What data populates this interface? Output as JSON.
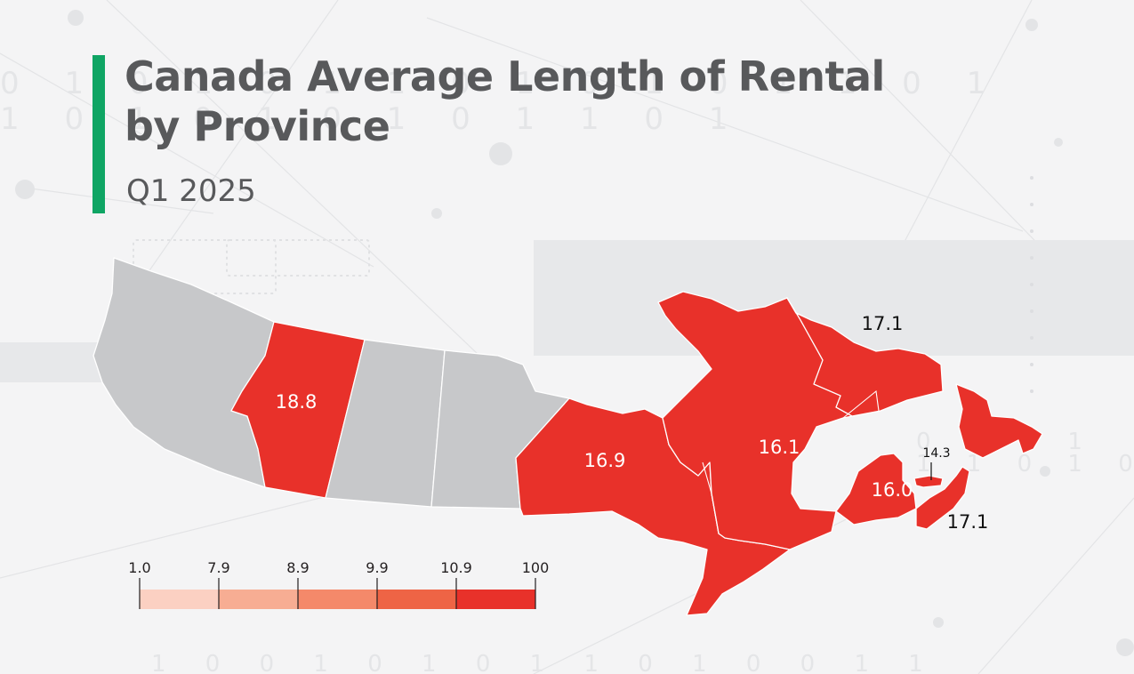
{
  "header": {
    "title_line1": "Canada Average Length of Rental",
    "title_line2": "by Province",
    "subtitle": "Q1 2025"
  },
  "colors": {
    "accent": "#0fa564",
    "filled": "#e8312a",
    "no_data": "#c7c8ca",
    "label_light": "#ffffff",
    "label_dark": "#111111",
    "legend_bins": [
      "#fbd0c2",
      "#f7ad93",
      "#f4896a",
      "#ee6445",
      "#e8312a"
    ]
  },
  "map": {
    "regions": [
      {
        "id": "british-columbia",
        "name": "British Columbia",
        "value": null
      },
      {
        "id": "alberta",
        "name": "Alberta",
        "value": "18.8"
      },
      {
        "id": "saskatchewan",
        "name": "Saskatchewan",
        "value": null
      },
      {
        "id": "manitoba",
        "name": "Manitoba",
        "value": null
      },
      {
        "id": "ontario",
        "name": "Ontario",
        "value": "16.9"
      },
      {
        "id": "quebec",
        "name": "Quebec",
        "value": "16.1"
      },
      {
        "id": "newfoundland-and-labrador",
        "name": "Newfoundland and Labrador",
        "value": "17.1"
      },
      {
        "id": "new-brunswick",
        "name": "New Brunswick",
        "value": "16.0"
      },
      {
        "id": "prince-edward-island",
        "name": "Prince Edward Island",
        "value": "14.3"
      },
      {
        "id": "nova-scotia",
        "name": "Nova Scotia",
        "value": "17.1"
      }
    ]
  },
  "legend": {
    "ticks": [
      "1.0",
      "7.9",
      "8.9",
      "9.9",
      "10.9",
      "100"
    ]
  }
}
